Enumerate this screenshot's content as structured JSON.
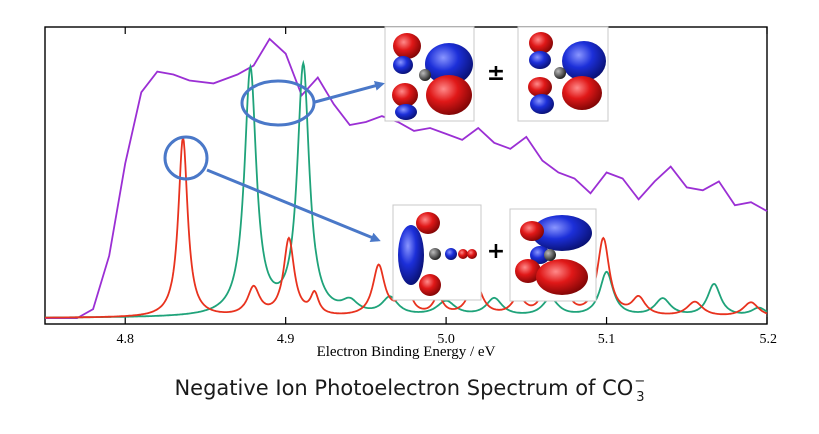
{
  "caption": {
    "prefix": "Negative Ion Photoelectron Spectrum of CO",
    "subscript": "3",
    "superscript": "−"
  },
  "orbital_combiners": {
    "top": "±",
    "bottom": "+"
  },
  "colors": {
    "experiment": "#9b2fd4",
    "calc_a": "#e8321e",
    "calc_b": "#1fa37a",
    "annotation": "#4a78c8",
    "lobe_red": "#e01818",
    "lobe_blue": "#1c2fd9"
  },
  "chart_data": {
    "type": "line",
    "xlabel": "Electron Binding Energy / eV",
    "ylabel": "",
    "xlim": [
      4.75,
      5.2
    ],
    "ylim": [
      0,
      1
    ],
    "xticks": [
      "4.8",
      "4.9",
      "5.0",
      "5.1",
      "5.2"
    ],
    "grid": false,
    "series": [
      {
        "color": "#9b2fd4",
        "x": [
          4.75,
          4.77,
          4.78,
          4.79,
          4.8,
          4.81,
          4.82,
          4.83,
          4.84,
          4.855,
          4.87,
          4.88,
          4.89,
          4.9,
          4.91,
          4.92,
          4.93,
          4.94,
          4.95,
          4.96,
          4.97,
          4.98,
          4.99,
          5.0,
          5.01,
          5.02,
          5.03,
          5.04,
          5.05,
          5.06,
          5.07,
          5.08,
          5.09,
          5.1,
          5.11,
          5.12,
          5.13,
          5.14,
          5.15,
          5.16,
          5.17,
          5.18,
          5.19,
          5.2
        ],
        "y": [
          0.02,
          0.02,
          0.05,
          0.23,
          0.54,
          0.78,
          0.85,
          0.84,
          0.82,
          0.81,
          0.84,
          0.87,
          0.96,
          0.91,
          0.77,
          0.83,
          0.74,
          0.67,
          0.68,
          0.7,
          0.68,
          0.65,
          0.66,
          0.64,
          0.62,
          0.66,
          0.61,
          0.59,
          0.63,
          0.55,
          0.51,
          0.49,
          0.44,
          0.51,
          0.49,
          0.42,
          0.48,
          0.53,
          0.46,
          0.45,
          0.48,
          0.4,
          0.41,
          0.38
        ]
      },
      {
        "color": "#e8321e",
        "peaks": [
          [
            4.836,
            0.605,
            0.0035
          ],
          [
            4.88,
            0.095,
            0.0045
          ],
          [
            4.902,
            0.26,
            0.004
          ],
          [
            4.918,
            0.07,
            0.003
          ],
          [
            4.958,
            0.17,
            0.0045
          ],
          [
            4.975,
            0.1,
            0.004
          ],
          [
            4.995,
            0.06,
            0.004
          ],
          [
            5.018,
            0.12,
            0.005
          ],
          [
            5.045,
            0.06,
            0.005
          ],
          [
            5.062,
            0.08,
            0.004
          ],
          [
            5.072,
            0.14,
            0.004
          ],
          [
            5.098,
            0.26,
            0.0045
          ],
          [
            5.12,
            0.06,
            0.005
          ],
          [
            5.155,
            0.05,
            0.006
          ],
          [
            5.19,
            0.05,
            0.006
          ]
        ],
        "baseline": 0.02
      },
      {
        "color": "#1fa37a",
        "peaks": [
          [
            4.878,
            0.83,
            0.0045
          ],
          [
            4.911,
            0.84,
            0.0045
          ],
          [
            4.94,
            0.04,
            0.006
          ],
          [
            4.965,
            0.06,
            0.006
          ],
          [
            5.0,
            0.05,
            0.007
          ],
          [
            5.03,
            0.06,
            0.006
          ],
          [
            5.065,
            0.06,
            0.006
          ],
          [
            5.1,
            0.15,
            0.005
          ],
          [
            5.135,
            0.06,
            0.006
          ],
          [
            5.167,
            0.11,
            0.005
          ],
          [
            5.195,
            0.03,
            0.006
          ]
        ],
        "baseline": 0.02
      }
    ]
  }
}
